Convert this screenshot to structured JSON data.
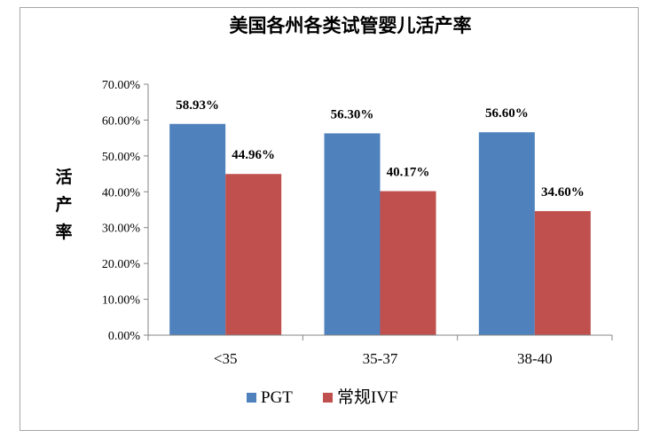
{
  "chart_data": {
    "type": "bar",
    "title": "美国各州各类试管婴儿活产率",
    "ylabel": "活产率",
    "xlabel": "",
    "categories": [
      "<35",
      "35-37",
      "38-40"
    ],
    "series": [
      {
        "name": "PGT",
        "values": [
          58.93,
          56.3,
          56.6
        ],
        "labels": [
          "58.93%",
          "56.30%",
          "56.60%"
        ],
        "color": "#4f81bd"
      },
      {
        "name": "常规IVF",
        "values": [
          44.96,
          40.17,
          34.6
        ],
        "labels": [
          "44.96%",
          "40.17%",
          "34.60%"
        ],
        "color": "#c0504d"
      }
    ],
    "ylim": [
      0,
      70
    ],
    "yticks": [
      "0.00%",
      "10.00%",
      "20.00%",
      "30.00%",
      "40.00%",
      "50.00%",
      "60.00%",
      "70.00%"
    ],
    "grid": false,
    "legend": "bottom"
  }
}
